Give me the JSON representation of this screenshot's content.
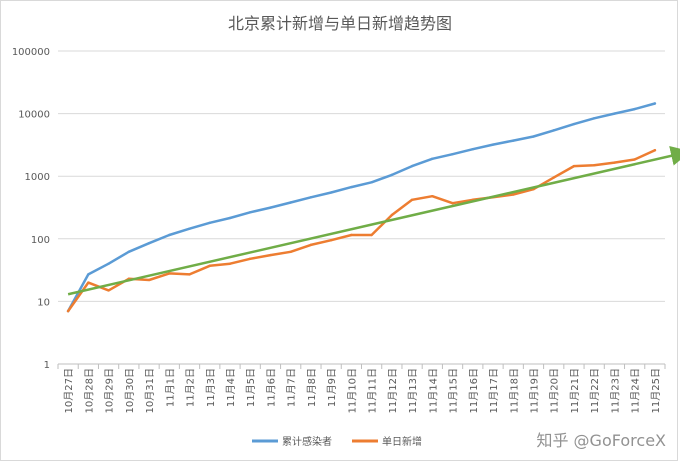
{
  "chart_data": {
    "type": "line",
    "title": "北京累计新增与单日新增趋势图",
    "xlabel": "",
    "ylabel": "",
    "yscale": "log",
    "ylim": [
      1,
      100000
    ],
    "yticks": [
      "1",
      "10",
      "100",
      "1000",
      "10000",
      "100000"
    ],
    "grid": true,
    "legend_position": "bottom",
    "categories": [
      "10月27日",
      "10月28日",
      "10月29日",
      "10月30日",
      "10月31日",
      "11月1日",
      "11月2日",
      "11月3日",
      "11月4日",
      "11月5日",
      "11月6日",
      "11月7日",
      "11月8日",
      "11月9日",
      "11月10日",
      "11月11日",
      "11月12日",
      "11月13日",
      "11月14日",
      "11月15日",
      "11月16日",
      "11月17日",
      "11月18日",
      "11月19日",
      "11月20日",
      "11月21日",
      "11月22日",
      "11月23日",
      "11月24日",
      "11月25日"
    ],
    "series": [
      {
        "name": "累计感染者",
        "color": "#5b9bd5",
        "values": [
          7,
          27,
          40,
          62,
          85,
          115,
          145,
          180,
          215,
          265,
          315,
          380,
          460,
          550,
          670,
          800,
          1050,
          1450,
          1900,
          2250,
          2700,
          3200,
          3700,
          4300,
          5400,
          6800,
          8400,
          10000,
          11800,
          14500
        ]
      },
      {
        "name": "单日新增",
        "color": "#ed7d31",
        "values": [
          7,
          20,
          15,
          23,
          22,
          28,
          27,
          37,
          40,
          48,
          55,
          62,
          80,
          95,
          115,
          115,
          240,
          420,
          480,
          370,
          420,
          460,
          510,
          620,
          950,
          1450,
          1500,
          1650,
          1850,
          2600
        ]
      }
    ],
    "trendline": {
      "color": "#70ad47",
      "from": [
        0,
        13
      ],
      "to": [
        30,
        2300
      ]
    }
  },
  "watermark": "知乎 @GoForceX"
}
